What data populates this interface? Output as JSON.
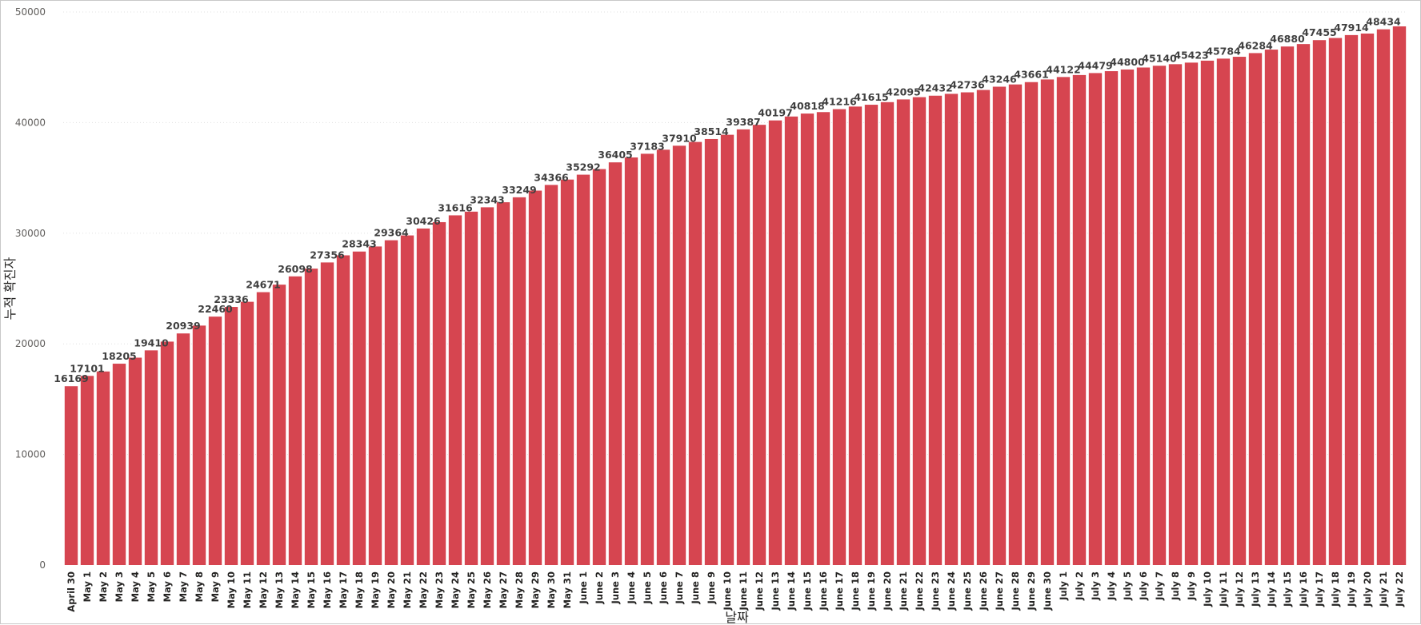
{
  "chart_data": {
    "type": "bar",
    "xlabel": "날짜",
    "ylabel": "누적 확진자",
    "ylim": [
      0,
      50000
    ],
    "yticks": [
      0,
      10000,
      20000,
      30000,
      40000,
      50000
    ],
    "grid": true,
    "bar_color": "#d64550",
    "categories": [
      "April 30",
      "May 1",
      "May 2",
      "May 3",
      "May 4",
      "May 5",
      "May 6",
      "May 7",
      "May 8",
      "May 9",
      "May 10",
      "May 11",
      "May 12",
      "May 13",
      "May 14",
      "May 15",
      "May 16",
      "May 17",
      "May 18",
      "May 19",
      "May 20",
      "May 21",
      "May 22",
      "May 23",
      "May 24",
      "May 25",
      "May 26",
      "May 27",
      "May 28",
      "May 29",
      "May 30",
      "May 31",
      "June 1",
      "June 2",
      "June 3",
      "June 4",
      "June 5",
      "June 6",
      "June 7",
      "June 8",
      "June 9",
      "June 10",
      "June 11",
      "June 12",
      "June 13",
      "June 14",
      "June 15",
      "June 16",
      "June 17",
      "June 18",
      "June 19",
      "June 20",
      "June 21",
      "June 22",
      "June 23",
      "June 24",
      "June 25",
      "June 26",
      "June 27",
      "June 28",
      "June 29",
      "June 30",
      "July 1",
      "July 2",
      "July 3",
      "July 4",
      "July 5",
      "July 6",
      "July 7",
      "July 8",
      "July 9",
      "July 10",
      "July 11",
      "July 12",
      "July 13",
      "July 14",
      "July 15",
      "July 16",
      "July 17",
      "July 18",
      "July 19",
      "July 20",
      "July 21",
      "July 22"
    ],
    "values": [
      16169,
      17101,
      17500,
      18205,
      18750,
      19410,
      20200,
      20939,
      21650,
      22460,
      23336,
      23800,
      24671,
      25350,
      26098,
      26800,
      27356,
      28000,
      28343,
      28800,
      29364,
      29800,
      30426,
      31000,
      31616,
      31950,
      32343,
      32800,
      33249,
      33850,
      34366,
      34850,
      35292,
      35800,
      36405,
      36850,
      37183,
      37550,
      37910,
      38250,
      38514,
      38900,
      39387,
      39800,
      40197,
      40550,
      40818,
      40950,
      41216,
      41450,
      41615,
      41850,
      42095,
      42300,
      42432,
      42600,
      42736,
      42950,
      43246,
      43450,
      43661,
      43900,
      44122,
      44300,
      44479,
      44650,
      44800,
      44980,
      45140,
      45280,
      45423,
      45600,
      45784,
      45950,
      46284,
      46600,
      46880,
      47100,
      47455,
      47650,
      47914,
      48050,
      48434,
      48700
    ],
    "data_labels": {
      "April 30": "16169",
      "May 1": "17101",
      "May 3": "18205",
      "May 5": "19410",
      "May 7": "20939",
      "May 9": "22460",
      "May 10": "23336",
      "May 12": "24671",
      "May 14": "26098",
      "May 16": "27356",
      "May 18": "28343",
      "May 20": "29364",
      "May 22": "30426",
      "May 24": "31616",
      "May 26": "32343",
      "May 28": "33249",
      "May 30": "34366",
      "June 1": "35292",
      "June 3": "36405",
      "June 5": "37183",
      "June 7": "37910",
      "June 9": "38514",
      "June 11": "39387",
      "June 13": "40197",
      "June 15": "40818",
      "June 17": "41216",
      "June 19": "41615",
      "June 21": "42095",
      "June 23": "42432",
      "June 25": "42736",
      "June 27": "43246",
      "June 29": "43661",
      "July 1": "44122",
      "July 3": "44479",
      "July 5": "44800",
      "July 7": "45140",
      "July 9": "45423",
      "July 11": "45784",
      "July 13": "46284",
      "July 15": "46880",
      "July 17": "47455",
      "July 19": "47914",
      "July 21": "48434"
    }
  }
}
